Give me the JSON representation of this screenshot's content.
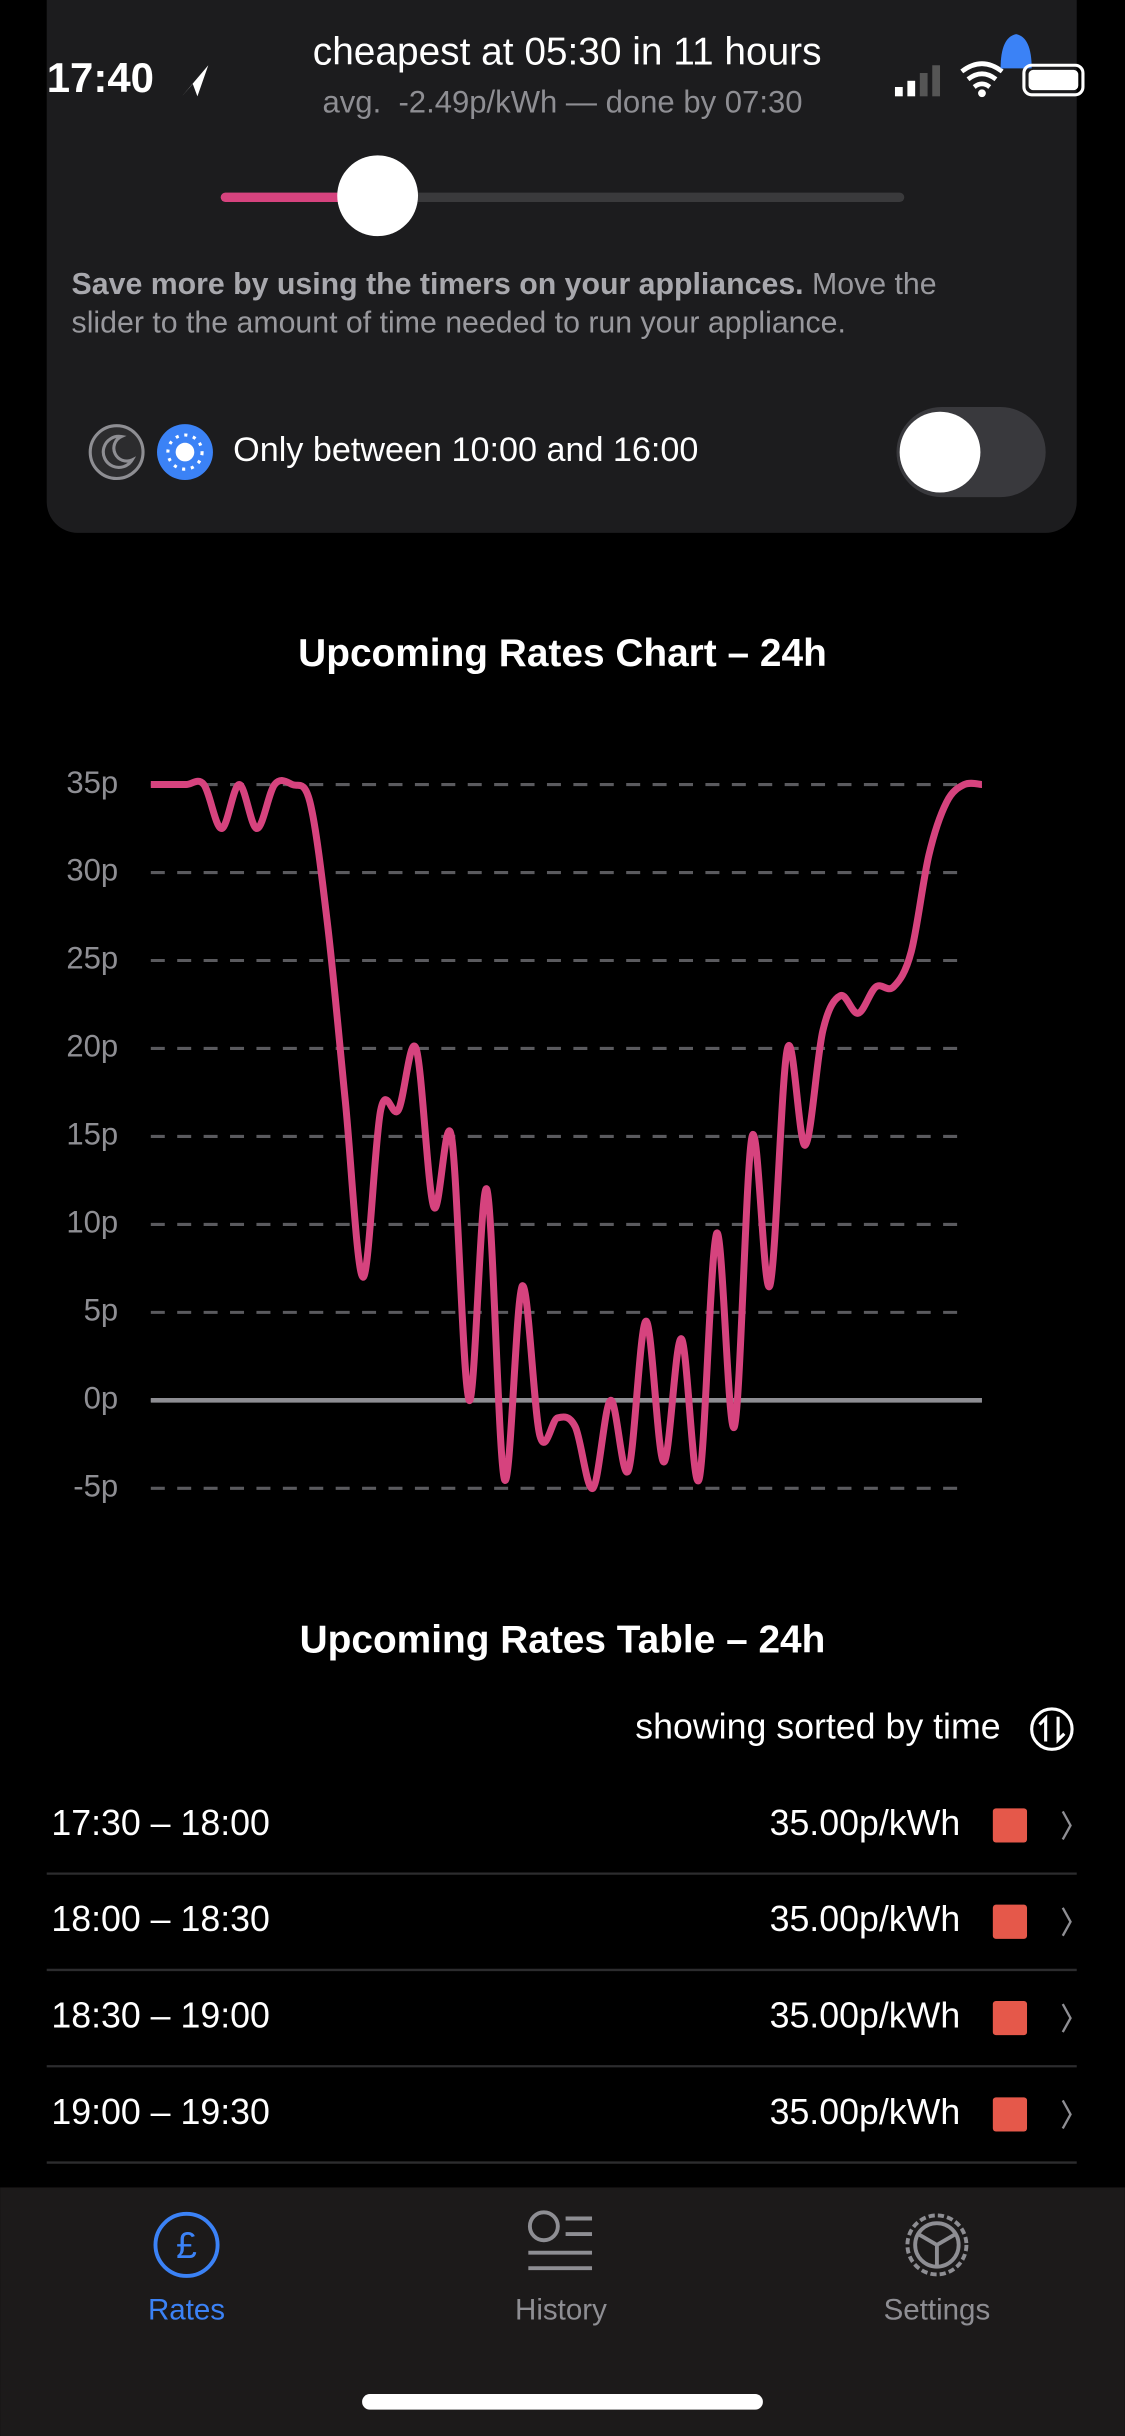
{
  "status": {
    "time": "17:40"
  },
  "header": {
    "title": "cheapest at 05:30 in 11 hours",
    "subtitle": "avg.  -2.49p/kWh — done by 07:30"
  },
  "description": {
    "bold": "Save more by using the timers on your appliances.",
    "lines": [
      "Move the",
      "slider to the amount of time needed to run your appliance."
    ]
  },
  "filter": {
    "label": "Only between 10:00 and 16:00"
  },
  "chart_data": {
    "type": "line",
    "title": "Upcoming Rates Chart – 24h",
    "series": [
      {
        "color": "#d6437e",
        "values": [
          35,
          35,
          35,
          35,
          32.5,
          35,
          32.5,
          35,
          35,
          34,
          27,
          17,
          7,
          16.5,
          16.5,
          20,
          11,
          15,
          0,
          12,
          -4.5,
          6.5,
          -2,
          -1,
          -1.5,
          -5,
          0,
          -4,
          4.5,
          -3.5,
          3.5,
          -4.5,
          9.5,
          -1.5,
          15,
          6.5,
          20,
          14.5,
          21,
          23,
          22,
          23.5,
          23.5,
          25.5,
          31,
          34,
          35,
          35
        ]
      }
    ],
    "ylim": [
      -5,
      35
    ],
    "yticks": [
      {
        "value": 35,
        "label": "35p"
      },
      {
        "value": 30,
        "label": "30p"
      },
      {
        "value": 25,
        "label": "25p"
      },
      {
        "value": 20,
        "label": "20p"
      },
      {
        "value": 15,
        "label": "15p"
      },
      {
        "value": 10,
        "label": "10p"
      },
      {
        "value": 5,
        "label": "5p"
      },
      {
        "value": 0,
        "label": "0p"
      },
      {
        "value": -5,
        "label": "-5p"
      }
    ],
    "grid": true
  },
  "table": {
    "title": "Upcoming Rates Table – 24h",
    "sort_label": "showing sorted by time",
    "rows": [
      [
        "17:30 – 18:00",
        "35.00p/kWh"
      ],
      [
        "18:00 – 18:30",
        "35.00p/kWh"
      ],
      [
        "18:30 – 19:00",
        "35.00p/kWh"
      ],
      [
        "19:00 – 19:30",
        "35.00p/kWh"
      ]
    ]
  },
  "tabs": [
    "Rates",
    "History",
    "Settings"
  ]
}
